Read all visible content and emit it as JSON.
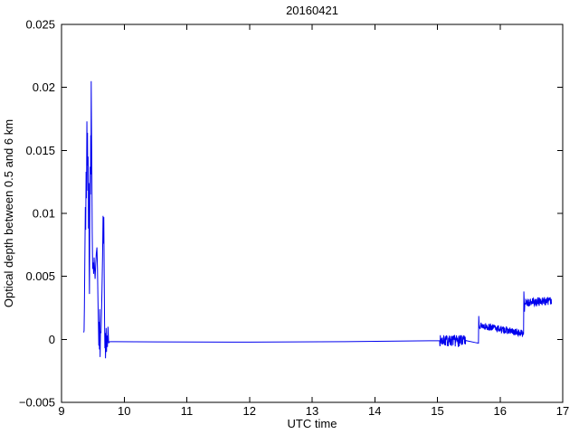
{
  "figure": {
    "background": "#ffffff"
  },
  "chart_data": {
    "type": "line",
    "title": "20160421",
    "xlabel": "UTC time",
    "ylabel": "Optical depth between 0.5 and 6 km",
    "xlim": [
      9,
      17
    ],
    "ylim": [
      -0.005,
      0.025
    ],
    "x_tick_values": [
      9,
      10,
      11,
      12,
      13,
      14,
      15,
      16,
      17
    ],
    "x_tick_labels": [
      "9",
      "10",
      "11",
      "12",
      "13",
      "14",
      "15",
      "16",
      "17"
    ],
    "y_tick_values": [
      -0.005,
      0,
      0.005,
      0.01,
      0.015,
      0.02,
      0.025
    ],
    "y_tick_labels": [
      "−0.005",
      "0",
      "0.005",
      "0.01",
      "0.015",
      "0.02",
      "0.025"
    ],
    "grid": false,
    "box": true,
    "legend": null,
    "line_color": "#0000ee",
    "axis_color": "#000000",
    "background": "#ffffff",
    "series": [
      {
        "name": "optical-depth-0.5-6km",
        "segments": [
          {
            "type": "points",
            "pts": [
              [
                9.355,
                0.00055
              ],
              [
                9.36,
                0.0007
              ],
              [
                9.365,
                0.0025
              ],
              [
                9.372,
                0.0063
              ],
              [
                9.38,
                0.0105
              ],
              [
                9.386,
                0.0087
              ],
              [
                9.392,
                0.0133
              ],
              [
                9.398,
                0.0112
              ],
              [
                9.405,
                0.0173
              ],
              [
                9.41,
                0.0138
              ],
              [
                9.415,
                0.0164
              ],
              [
                9.42,
                0.0118
              ],
              [
                9.425,
                0.0145
              ],
              [
                9.43,
                0.0088
              ],
              [
                9.436,
                0.0124
              ],
              [
                9.441,
                0.0062
              ],
              [
                9.446,
                0.0036
              ],
              [
                9.451,
                0.0098
              ],
              [
                9.456,
                0.0137
              ],
              [
                9.461,
                0.0115
              ],
              [
                9.466,
                0.0162
              ],
              [
                9.47,
                0.0131
              ],
              [
                9.474,
                0.0205
              ],
              [
                9.479,
                0.0168
              ],
              [
                9.484,
                0.0134
              ],
              [
                9.49,
                0.0085
              ],
              [
                9.497,
                0.0056
              ],
              [
                9.505,
                0.0061
              ],
              [
                9.512,
                0.0052
              ],
              [
                9.52,
                0.0065
              ],
              [
                9.528,
                0.0056
              ],
              [
                9.536,
                0.0048
              ],
              [
                9.545,
                0.0059
              ],
              [
                9.555,
                0.0068
              ],
              [
                9.565,
                0.0073
              ],
              [
                9.574,
                0.0056
              ],
              [
                9.582,
                0.003
              ],
              [
                9.589,
                0.0012
              ],
              [
                9.595,
                -0.0005
              ],
              [
                9.6,
                0.0014
              ],
              [
                9.605,
                -0.0008
              ],
              [
                9.611,
                0.0024
              ],
              [
                9.616,
                -0.0014
              ],
              [
                9.622,
                0.0006
              ],
              [
                9.63,
                0.0005
              ],
              [
                9.638,
                0.002
              ],
              [
                9.646,
                0.004
              ],
              [
                9.655,
                0.0066
              ],
              [
                9.663,
                0.0098
              ],
              [
                9.669,
                0.0076
              ],
              [
                9.675,
                0.0097
              ],
              [
                9.681,
                0.0052
              ],
              [
                9.687,
                0.0015
              ],
              [
                9.692,
                -0.0007
              ],
              [
                9.697,
                0.0005
              ],
              [
                9.702,
                -0.0015
              ],
              [
                9.707,
                -0.0002
              ],
              [
                9.712,
                0.0009
              ],
              [
                9.718,
                -0.001
              ],
              [
                9.725,
                0.0003
              ],
              [
                9.733,
                -0.0006
              ],
              [
                9.742,
                0.001
              ],
              [
                9.752,
                -0.0003
              ],
              [
                9.762,
                -0.0002
              ],
              [
                9.78,
                -0.00018
              ],
              [
                9.8,
                -0.00018
              ],
              [
                10.5,
                -0.0002
              ],
              [
                12.0,
                -0.00022
              ],
              [
                13.5,
                -0.00018
              ],
              [
                15.035,
                -0.0001
              ]
            ]
          },
          {
            "type": "noise",
            "t0": 15.04,
            "t1": 15.45,
            "v0": -0.0001,
            "v1": -0.00012,
            "amp": 0.00045,
            "n": 130,
            "seed": 7
          },
          {
            "type": "points",
            "pts": [
              [
                15.46,
                -0.0001
              ],
              [
                15.6,
                -0.00025
              ],
              [
                15.655,
                -0.0003
              ],
              [
                15.66,
                0.00185
              ]
            ]
          },
          {
            "type": "noise",
            "t0": 15.665,
            "t1": 16.37,
            "v0": 0.00115,
            "v1": 0.00045,
            "amp": 0.00028,
            "n": 210,
            "seed": 13
          },
          {
            "type": "points",
            "pts": [
              [
                16.375,
                0.0004
              ],
              [
                16.38,
                0.0038
              ],
              [
                16.39,
                0.0022
              ]
            ]
          },
          {
            "type": "noise",
            "t0": 16.395,
            "t1": 16.82,
            "v0": 0.0029,
            "v1": 0.0031,
            "amp": 0.00035,
            "n": 130,
            "seed": 21
          }
        ]
      }
    ]
  }
}
